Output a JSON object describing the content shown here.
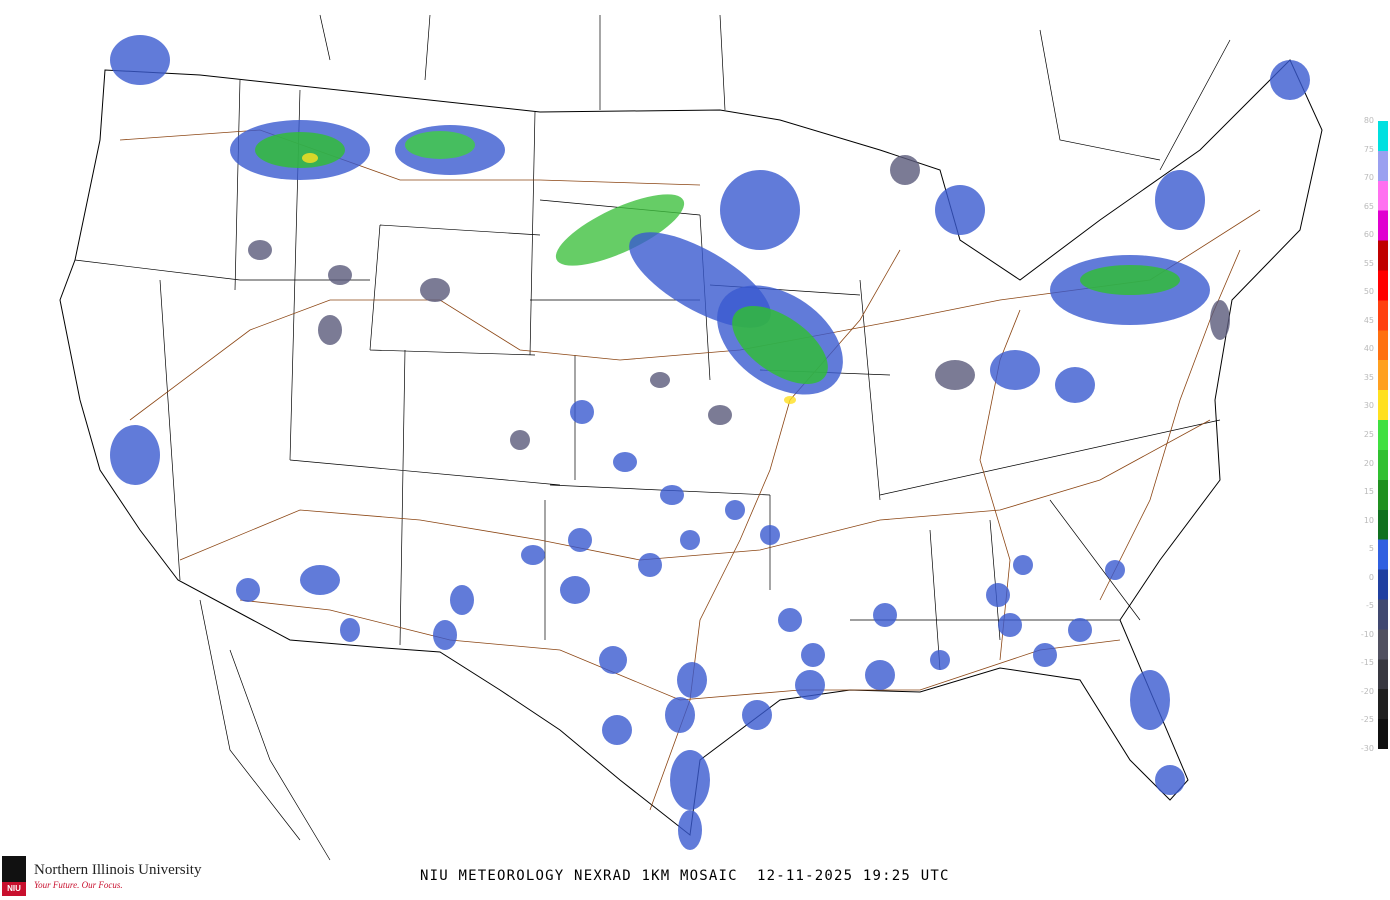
{
  "caption": "NIU METEOROLOGY NEXRAD 1KM MOSAIC  12-11-2025 19:25 UTC",
  "product": "NIU METEOROLOGY NEXRAD 1KM MOSAIC",
  "date": "12-11-2025",
  "time": "19:25 UTC",
  "logo": {
    "name": "Northern Illinois University",
    "tagline": "Your Future. Our Focus.",
    "mark": "NIU"
  },
  "colorbar": {
    "labels": [
      "80",
      "75",
      "70",
      "65",
      "60",
      "55",
      "50",
      "45",
      "40",
      "35",
      "30",
      "25",
      "20",
      "15",
      "10",
      "5",
      "0",
      "-5",
      "-10",
      "-15",
      "-20",
      "-25",
      "-30"
    ],
    "colors": [
      "#00e0e0",
      "#9aa0f0",
      "#ff70f0",
      "#e000d0",
      "#c00000",
      "#ff0000",
      "#ff4010",
      "#ff7010",
      "#ffa020",
      "#ffe020",
      "#40e040",
      "#30c030",
      "#209020",
      "#107020",
      "#3060e0",
      "#2040a0",
      "#404870",
      "#505060",
      "#383840",
      "#202020",
      "#101010"
    ]
  },
  "map_colors": {
    "roads": "#8b4513",
    "borders": "#000000",
    "light_echo": "#3a5ad0",
    "moderate_echo": "#30c030",
    "heavy_echo": "#ffe020",
    "clutter": "#5a5a7a"
  }
}
